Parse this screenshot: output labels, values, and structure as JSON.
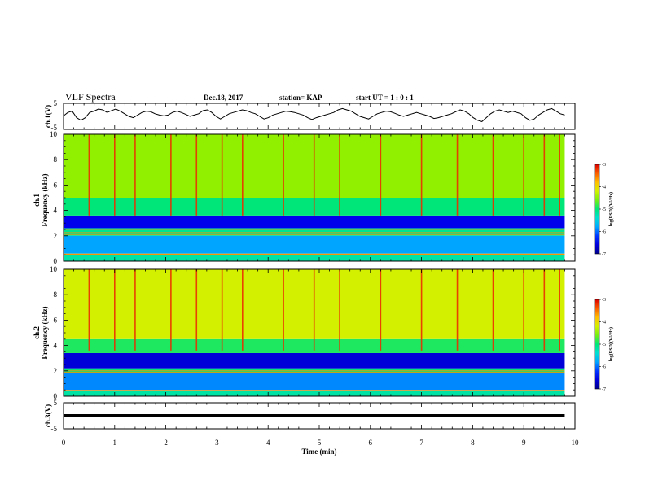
{
  "header": {
    "title": "VLF Spectra",
    "date": "Dec.18, 2017",
    "station": "station= KAP",
    "start": "start  UT =  1 : 0  : 1"
  },
  "chart_data": [
    {
      "type": "line",
      "name": "ch1-waveform",
      "ylabel": "ch.1(V)",
      "ylim": [
        -5,
        5
      ],
      "y_ticks": [
        "5",
        "-5"
      ],
      "x_range": [
        0,
        10
      ],
      "data_extent_min": 9.8,
      "samples": [
        0.2,
        1.5,
        2.0,
        -0.5,
        -1.5,
        -0.5,
        1.5,
        2.0,
        2.8,
        2.5,
        1.5,
        2.2,
        2.8,
        2.0,
        1.0,
        0.0,
        -0.5,
        0.5,
        1.5,
        2.0,
        1.8,
        1.0,
        0.5,
        0.2,
        0.5,
        1.5,
        2.0,
        1.5,
        0.8,
        0.0,
        0.5,
        1.0,
        2.2,
        2.5,
        1.5,
        0.0,
        -1.0,
        0.0,
        1.0,
        1.5,
        2.0,
        2.5,
        2.2,
        1.5,
        1.0,
        0.0,
        -1.0,
        -0.5,
        0.5,
        1.0,
        1.5,
        2.0,
        1.8,
        1.5,
        1.0,
        0.5,
        -0.5,
        -1.2,
        -0.5,
        0.0,
        0.5,
        1.0,
        1.5,
        2.5,
        3.0,
        2.5,
        2.0,
        1.0,
        0.0,
        -0.5,
        -1.0,
        0.0,
        1.0,
        1.5,
        2.0,
        1.8,
        1.2,
        0.5,
        0.0,
        0.5,
        1.0,
        1.5,
        1.0,
        0.5,
        0.0,
        -0.8,
        -0.5,
        0.0,
        0.5,
        1.0,
        1.8,
        2.5,
        2.0,
        1.0,
        -0.5,
        -1.5,
        -2.0,
        -0.5,
        1.0,
        2.0,
        2.5,
        2.0,
        1.5,
        2.0,
        1.5,
        1.0,
        -0.5,
        -1.5,
        -1.0,
        0.5,
        1.5,
        2.5,
        3.0,
        2.0,
        1.0,
        0.5
      ]
    },
    {
      "type": "heatmap",
      "name": "ch1-spectrogram",
      "ylabel": "ch.1 Frequency  (kHz)",
      "ylim": [
        0,
        10
      ],
      "y_ticks": [
        "0",
        "2",
        "4",
        "6",
        "8",
        "10"
      ],
      "x_range": [
        0,
        10
      ],
      "data_extent_min": 9.8,
      "colorbar": {
        "label": "log(PSD)(V²/Hz)",
        "range": [
          -7,
          -3
        ],
        "ticks": [
          "-3",
          "-4",
          "-5",
          "-6",
          "-7"
        ]
      },
      "bands_khz": [
        {
          "from": 0.0,
          "to": 0.5,
          "level": -5.2
        },
        {
          "from": 0.5,
          "to": 0.6,
          "level": -3.8
        },
        {
          "from": 0.6,
          "to": 2.0,
          "level": -5.8
        },
        {
          "from": 2.0,
          "to": 2.6,
          "level": -5.1
        },
        {
          "from": 2.6,
          "to": 3.6,
          "level": -6.5
        },
        {
          "from": 3.6,
          "to": 5.0,
          "level": -5.0
        },
        {
          "from": 5.0,
          "to": 10.0,
          "level": -4.5
        }
      ],
      "lines_khz": [
        0.55,
        2.1,
        2.25,
        2.5
      ],
      "sferics_min": [
        0.5,
        1.0,
        1.4,
        2.1,
        2.6,
        3.1,
        3.5,
        4.3,
        4.9,
        5.4,
        6.2,
        7.0,
        7.7,
        8.4,
        9.0,
        9.4,
        9.7
      ]
    },
    {
      "type": "heatmap",
      "name": "ch2-spectrogram",
      "ylabel": "ch.2 Frequency  (kHz)",
      "ylim": [
        0,
        10
      ],
      "y_ticks": [
        "0",
        "2",
        "4",
        "6",
        "8",
        "10"
      ],
      "x_range": [
        0,
        10
      ],
      "data_extent_min": 9.8,
      "colorbar": {
        "label": "log(PSD)(V²/Hz)",
        "range": [
          -7,
          -3
        ],
        "ticks": [
          "-3",
          "-4",
          "-5",
          "-6",
          "-7"
        ]
      },
      "bands_khz": [
        {
          "from": 0.0,
          "to": 0.4,
          "level": -5.2
        },
        {
          "from": 0.4,
          "to": 0.5,
          "level": -3.8
        },
        {
          "from": 0.5,
          "to": 1.8,
          "level": -5.9
        },
        {
          "from": 1.8,
          "to": 2.2,
          "level": -5.0
        },
        {
          "from": 2.2,
          "to": 3.4,
          "level": -6.6
        },
        {
          "from": 3.4,
          "to": 4.5,
          "level": -4.9
        },
        {
          "from": 4.5,
          "to": 10.0,
          "level": -4.2
        }
      ],
      "lines_khz": [
        0.45,
        1.9,
        2.0
      ],
      "sferics_min": [
        0.5,
        1.0,
        1.4,
        2.1,
        2.6,
        3.1,
        3.5,
        4.3,
        4.9,
        5.4,
        6.2,
        7.0,
        7.7,
        8.4,
        9.0,
        9.4,
        9.7
      ]
    },
    {
      "type": "line",
      "name": "ch3-waveform",
      "ylabel": "ch.3(V)",
      "ylim": [
        -5,
        5
      ],
      "y_ticks": [
        "5",
        "-5"
      ],
      "x_range": [
        0,
        10
      ],
      "data_extent_min": 9.8,
      "constant_value": 0.0
    }
  ],
  "xaxis": {
    "label": "Time  (min)",
    "ticks": [
      "0",
      "1",
      "2",
      "3",
      "4",
      "5",
      "6",
      "7",
      "8",
      "9",
      "10"
    ]
  }
}
